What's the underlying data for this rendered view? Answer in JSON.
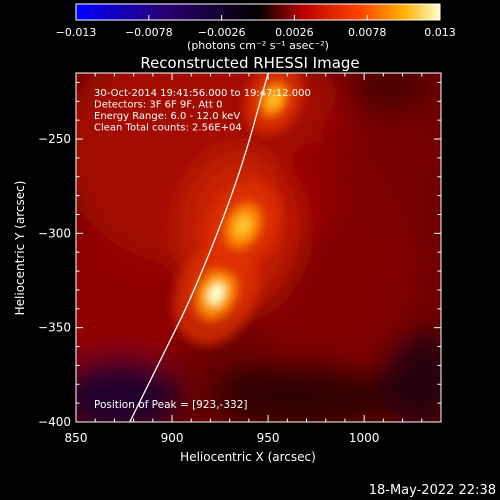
{
  "chart_data": {
    "type": "heatmap",
    "title": "Reconstructed RHESSI Image",
    "xlabel": "Heliocentric X (arcsec)",
    "ylabel": "Heliocentric Y (arcsec)",
    "xlim": [
      850,
      1040
    ],
    "ylim": [
      -400,
      -215
    ],
    "x_ticks": [
      850,
      900,
      950,
      1000
    ],
    "y_ticks": [
      -250,
      -300,
      -350,
      -400
    ],
    "colorbar": {
      "min": -0.013,
      "max": 0.013,
      "tick_labels": [
        "−0.013",
        "−0.0078",
        "−0.0026",
        "0.0026",
        "0.0078",
        "0.013"
      ],
      "unit_label": "(photons cm⁻² s⁻¹ asec⁻²)",
      "colors": [
        "#0000ff",
        "#2a0070",
        "#000000",
        "#b80000",
        "#ff4400",
        "#ffb000",
        "#ffffcc"
      ]
    },
    "info_lines": [
      "30-Oct-2014 19:41:56.000 to 19:47:12.000",
      "Detectors: 3F 6F 9F, Att 0",
      "Energy Range: 6.0 - 12.0 keV",
      "Clean      Total counts: 2.56E+04"
    ],
    "peak_label": "Position of Peak = [923,-332]",
    "peak": [
      923,
      -332
    ],
    "sources": [
      {
        "x": 923,
        "y": -332,
        "level": 1.0
      },
      {
        "x": 937,
        "y": -296,
        "level": 0.85
      },
      {
        "x": 953,
        "y": -229,
        "level": 0.6
      }
    ],
    "limb_curve": [
      [
        950,
        -215
      ],
      [
        935,
        -270
      ],
      [
        912,
        -330
      ],
      [
        895,
        -365
      ],
      [
        878,
        -400
      ]
    ],
    "limb_color": "#ffffff"
  },
  "footer": {
    "timestamp": "18-May-2022 22:38"
  }
}
